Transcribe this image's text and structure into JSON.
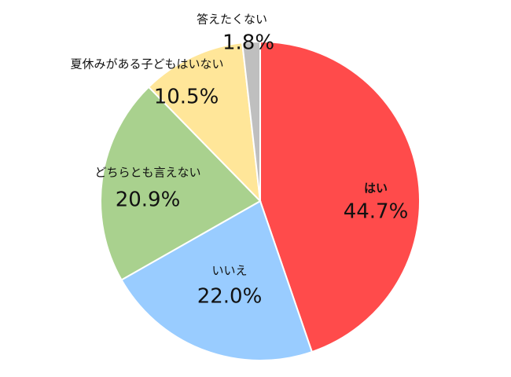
{
  "chart_data": {
    "type": "pie",
    "categories": [
      "はい",
      "いいえ",
      "どちらとも言えない",
      "夏休みがある子どもはいない",
      "答えたくない"
    ],
    "values": [
      44.7,
      22.0,
      20.9,
      10.5,
      1.8
    ],
    "value_labels": [
      "44.7%",
      "22.0%",
      "20.9%",
      "10.5%",
      "1.8%"
    ],
    "colors": [
      "#ff4b4b",
      "#99ccff",
      "#a9d18e",
      "#ffe699",
      "#bfbfbf"
    ]
  }
}
